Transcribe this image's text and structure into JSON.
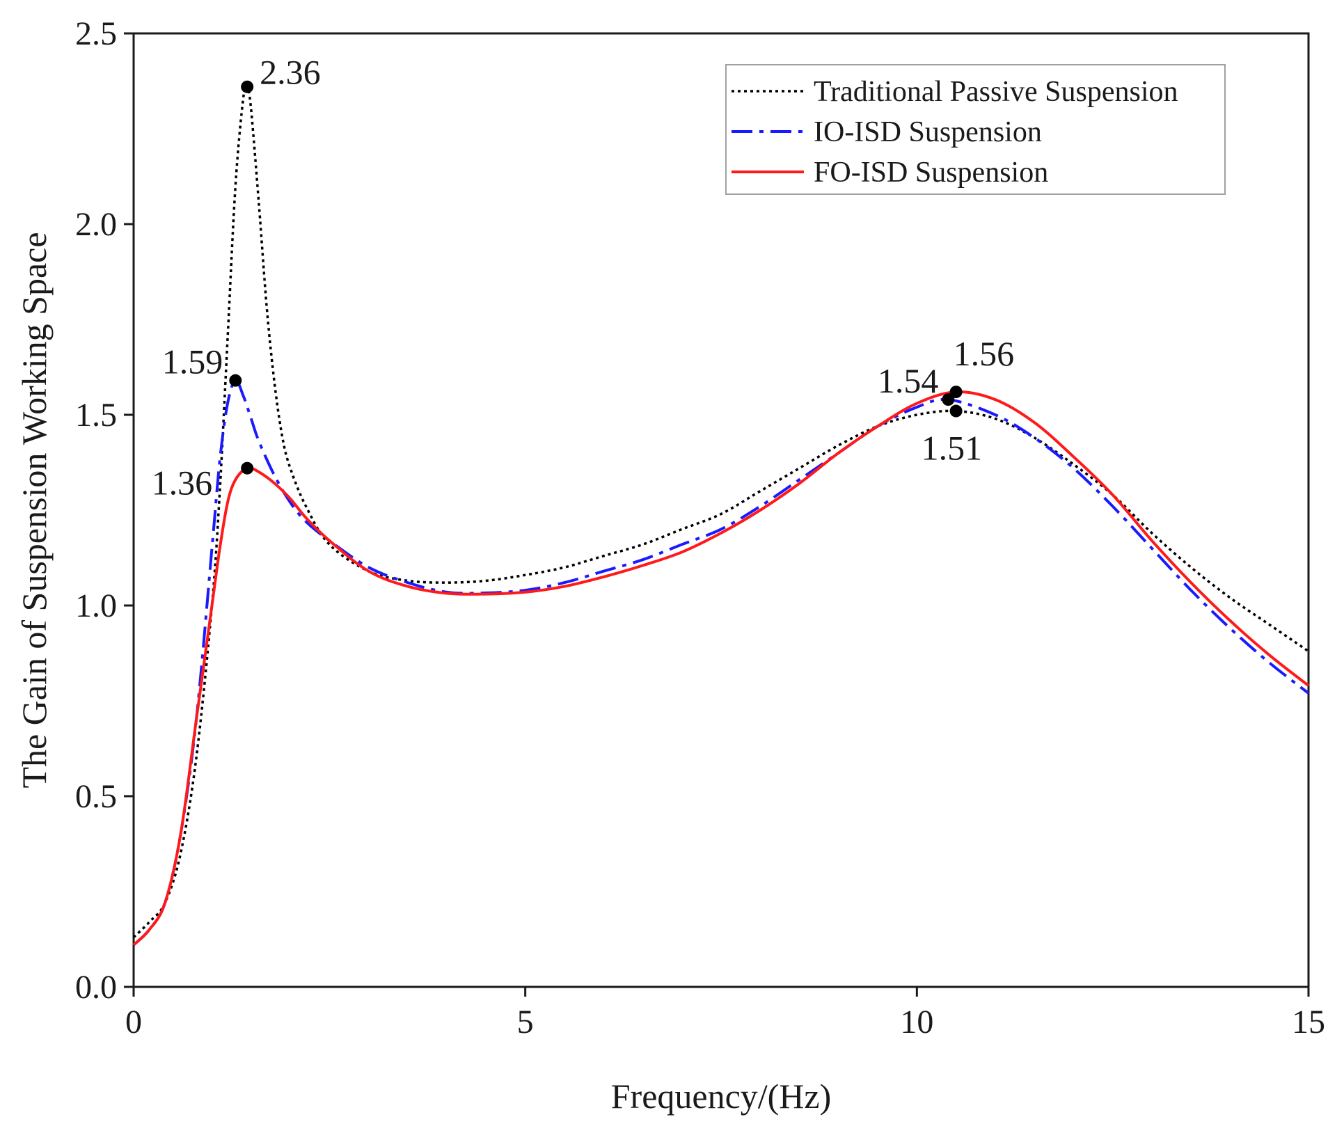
{
  "chart_data": {
    "type": "line",
    "title": "",
    "xlabel": "Frequency/(Hz)",
    "ylabel": "The Gain of Suspension Working Space",
    "xlim": [
      0,
      15
    ],
    "ylim": [
      0,
      2.5
    ],
    "xticks": [
      0,
      5,
      10,
      15
    ],
    "xtick_labels": [
      "0",
      "5",
      "10",
      "15"
    ],
    "yticks": [
      0,
      0.5,
      1.0,
      1.5,
      2.0,
      2.5
    ],
    "ytick_labels": [
      "0.0",
      "0.5",
      "1.0",
      "1.5",
      "2.0",
      "2.5"
    ],
    "legend_position": "top-right",
    "series": [
      {
        "name": "Traditional Passive Suspension",
        "color": "#000000",
        "style": "dotted",
        "x": [
          0,
          0.2,
          0.4,
          0.6,
          0.8,
          1.0,
          1.1,
          1.2,
          1.3,
          1.4,
          1.45,
          1.5,
          1.6,
          1.7,
          1.8,
          1.9,
          2.0,
          2.2,
          2.5,
          3.0,
          3.5,
          4.0,
          4.5,
          5.0,
          5.5,
          6.0,
          6.5,
          7.0,
          7.5,
          8.0,
          8.5,
          9.0,
          9.5,
          10.0,
          10.5,
          11.0,
          11.5,
          12.0,
          12.5,
          13.0,
          13.5,
          14.0,
          14.5,
          15.0
        ],
        "y": [
          0.13,
          0.17,
          0.22,
          0.35,
          0.6,
          1.0,
          1.3,
          1.7,
          2.1,
          2.33,
          2.36,
          2.3,
          2.05,
          1.78,
          1.58,
          1.44,
          1.36,
          1.26,
          1.16,
          1.09,
          1.065,
          1.06,
          1.065,
          1.08,
          1.1,
          1.13,
          1.16,
          1.2,
          1.24,
          1.3,
          1.36,
          1.42,
          1.47,
          1.5,
          1.51,
          1.49,
          1.44,
          1.37,
          1.29,
          1.19,
          1.1,
          1.02,
          0.95,
          0.88
        ]
      },
      {
        "name": "IO-ISD Suspension",
        "color": "#1a1aff",
        "style": "dashdot",
        "x": [
          0,
          0.2,
          0.4,
          0.6,
          0.8,
          1.0,
          1.1,
          1.2,
          1.3,
          1.4,
          1.5,
          1.6,
          1.8,
          2.0,
          2.2,
          2.5,
          3.0,
          3.5,
          4.0,
          4.5,
          5.0,
          5.5,
          6.0,
          6.5,
          7.0,
          7.5,
          8.0,
          8.5,
          9.0,
          9.5,
          10.0,
          10.4,
          11.0,
          11.5,
          12.0,
          12.5,
          13.0,
          13.5,
          14.0,
          14.5,
          15.0
        ],
        "y": [
          0.11,
          0.15,
          0.22,
          0.4,
          0.7,
          1.15,
          1.38,
          1.53,
          1.59,
          1.55,
          1.49,
          1.43,
          1.34,
          1.27,
          1.22,
          1.17,
          1.1,
          1.06,
          1.035,
          1.033,
          1.04,
          1.06,
          1.09,
          1.12,
          1.16,
          1.2,
          1.26,
          1.33,
          1.4,
          1.47,
          1.52,
          1.54,
          1.5,
          1.44,
          1.36,
          1.26,
          1.15,
          1.04,
          0.94,
          0.85,
          0.77
        ]
      },
      {
        "name": "FO-ISD Suspension",
        "color": "#ff1a1a",
        "style": "solid",
        "x": [
          0,
          0.2,
          0.4,
          0.6,
          0.8,
          1.0,
          1.1,
          1.2,
          1.3,
          1.45,
          1.6,
          1.8,
          2.0,
          2.2,
          2.5,
          3.0,
          3.5,
          4.0,
          4.5,
          5.0,
          5.5,
          6.0,
          6.5,
          7.0,
          7.5,
          8.0,
          8.5,
          9.0,
          9.5,
          10.0,
          10.5,
          11.0,
          11.5,
          12.0,
          12.5,
          13.0,
          13.5,
          14.0,
          14.5,
          15.0
        ],
        "y": [
          0.11,
          0.15,
          0.22,
          0.4,
          0.7,
          1.0,
          1.15,
          1.27,
          1.33,
          1.36,
          1.35,
          1.32,
          1.28,
          1.23,
          1.17,
          1.09,
          1.05,
          1.032,
          1.03,
          1.035,
          1.05,
          1.075,
          1.105,
          1.14,
          1.19,
          1.25,
          1.32,
          1.4,
          1.47,
          1.53,
          1.56,
          1.54,
          1.48,
          1.39,
          1.29,
          1.17,
          1.06,
          0.96,
          0.87,
          0.79
        ]
      }
    ],
    "annotations": [
      {
        "text": "2.36",
        "x": 1.45,
        "y": 2.36,
        "color": "#000000"
      },
      {
        "text": "1.59",
        "x": 1.3,
        "y": 1.59,
        "color": "#000000"
      },
      {
        "text": "1.36",
        "x": 1.45,
        "y": 1.36,
        "color": "#000000"
      },
      {
        "text": "1.54",
        "x": 10.4,
        "y": 1.54,
        "color": "#000000"
      },
      {
        "text": "1.56",
        "x": 10.5,
        "y": 1.56,
        "color": "#000000"
      },
      {
        "text": "1.51",
        "x": 10.5,
        "y": 1.51,
        "color": "#000000"
      }
    ]
  }
}
